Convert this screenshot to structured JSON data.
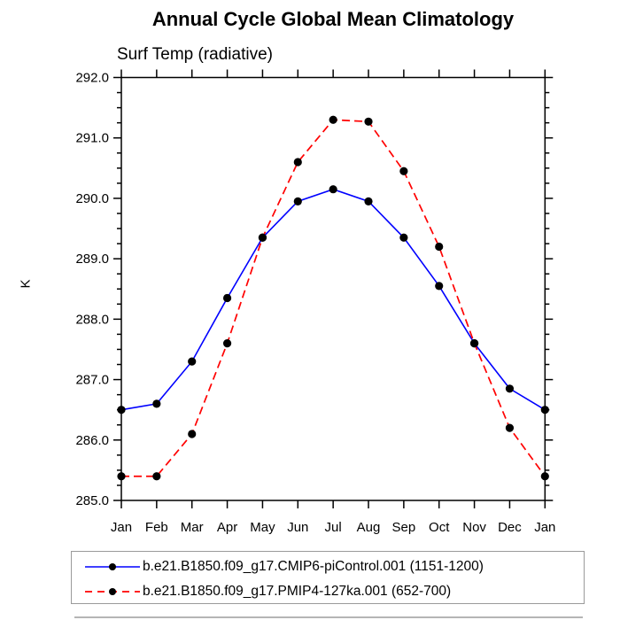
{
  "title": "Annual Cycle Global Mean Climatology",
  "chart_data": {
    "type": "line",
    "title": "Annual Cycle Global Mean Climatology",
    "subtitle": "Surf Temp (radiative)",
    "ylabel": "K",
    "xlabel": "",
    "grid": false,
    "legend_position": "bottom",
    "categories": [
      "Jan",
      "Feb",
      "Mar",
      "Apr",
      "May",
      "Jun",
      "Jul",
      "Aug",
      "Sep",
      "Oct",
      "Nov",
      "Dec",
      "Jan"
    ],
    "ylim": [
      285.0,
      292.0
    ],
    "ytick_step": 1.0,
    "ytick_minor_step": 0.25,
    "ytick_labels": [
      "285.0",
      "286.0",
      "287.0",
      "288.0",
      "289.0",
      "290.0",
      "291.0",
      "292.0"
    ],
    "axis_color": "#000000",
    "marker": "filled-circle",
    "marker_color": "#000000",
    "series": [
      {
        "id": "cmip6-picontrol",
        "name": "b.e21.B1850.f09_g17.CMIP6-piControl.001 (1151-1200)",
        "color": "#0000ff",
        "line_style": "solid",
        "values": [
          286.5,
          286.6,
          287.3,
          288.35,
          289.35,
          289.95,
          290.15,
          289.95,
          289.35,
          288.55,
          287.6,
          286.85,
          286.5
        ]
      },
      {
        "id": "pmip4-127ka",
        "name": "b.e21.B1850.f09_g17.PMIP4-127ka.001 (652-700)",
        "color": "#ff0000",
        "line_style": "dashed",
        "values": [
          285.4,
          285.4,
          286.1,
          287.6,
          289.35,
          290.6,
          291.3,
          291.27,
          290.45,
          289.2,
          287.6,
          286.2,
          285.4
        ]
      }
    ]
  }
}
